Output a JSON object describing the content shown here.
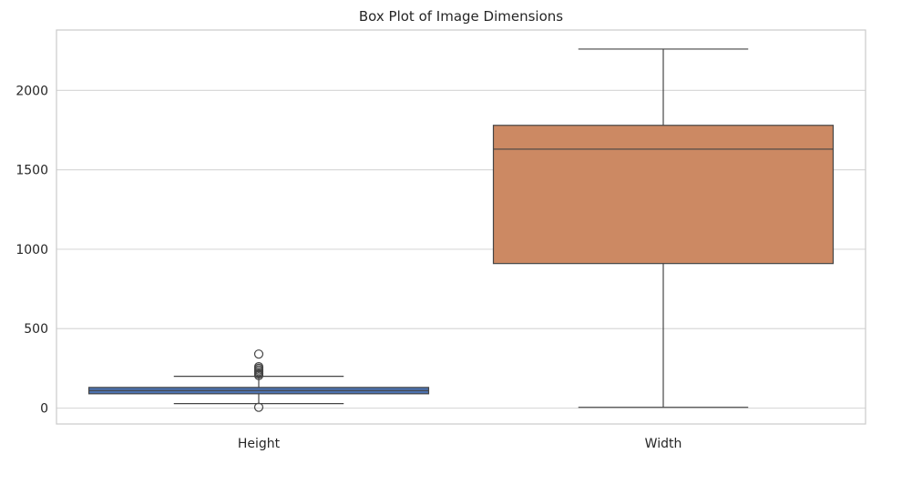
{
  "chart_data": {
    "type": "box",
    "title": "Box Plot of Image Dimensions",
    "xlabel": "",
    "ylabel": "",
    "categories": [
      "Height",
      "Width"
    ],
    "ylim": [
      -100,
      2380
    ],
    "yticks": [
      0,
      500,
      1000,
      1500,
      2000
    ],
    "grid": "horizontal",
    "series": [
      {
        "category": "Height",
        "color": "#4c72b0",
        "whisker_low": 28,
        "q1": 90,
        "median": 110,
        "q3": 130,
        "whisker_high": 200,
        "outliers": [
          5,
          205,
          215,
          220,
          230,
          240,
          250,
          260,
          340
        ]
      },
      {
        "category": "Width",
        "color": "#cc8963",
        "whisker_low": 5,
        "q1": 910,
        "median": 1630,
        "q3": 1780,
        "whisker_high": 2260,
        "outliers": []
      }
    ]
  }
}
